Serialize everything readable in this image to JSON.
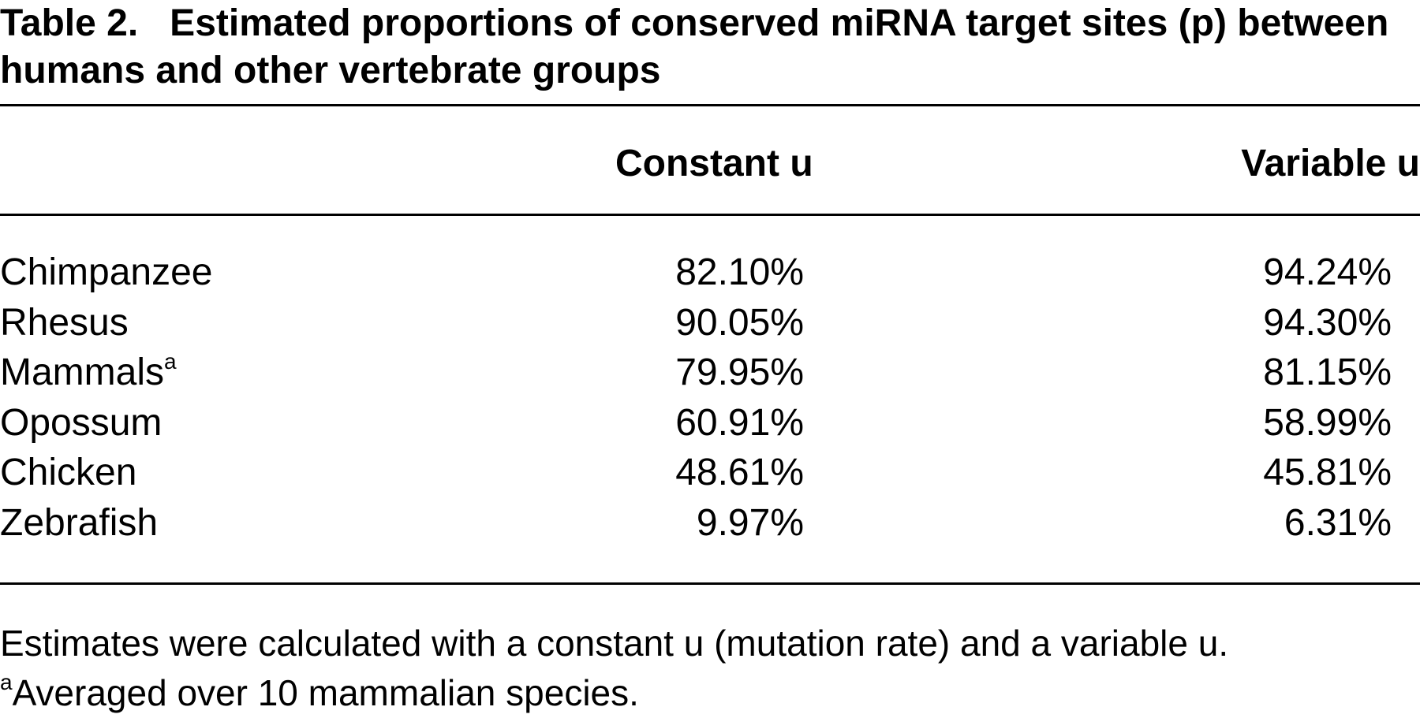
{
  "table": {
    "label": "Table 2.",
    "title": "Estimated proportions of conserved miRNA target sites (p) between humans and other vertebrate groups",
    "columns": [
      "Constant u",
      "Variable u"
    ],
    "rows": [
      {
        "name": "Chimpanzee",
        "cells": [
          "82.10%",
          "94.24%"
        ]
      },
      {
        "name": "Rhesus",
        "cells": [
          "90.05%",
          "94.30%"
        ]
      },
      {
        "name": "Mammals",
        "note": "a",
        "cells": [
          "79.95%",
          "81.15%"
        ]
      },
      {
        "name": "Opossum",
        "cells": [
          "60.91%",
          "58.99%"
        ]
      },
      {
        "name": "Chicken",
        "cells": [
          "48.61%",
          "45.81%"
        ]
      },
      {
        "name": "Zebrafish",
        "cells": [
          "9.97%",
          "6.31%"
        ]
      }
    ]
  },
  "footnotes": {
    "text": "Estimates were calculated with a constant u (mutation rate) and a variable u.",
    "notes": [
      {
        "mark": "a",
        "text": "Averaged over 10 mammalian species."
      }
    ]
  }
}
